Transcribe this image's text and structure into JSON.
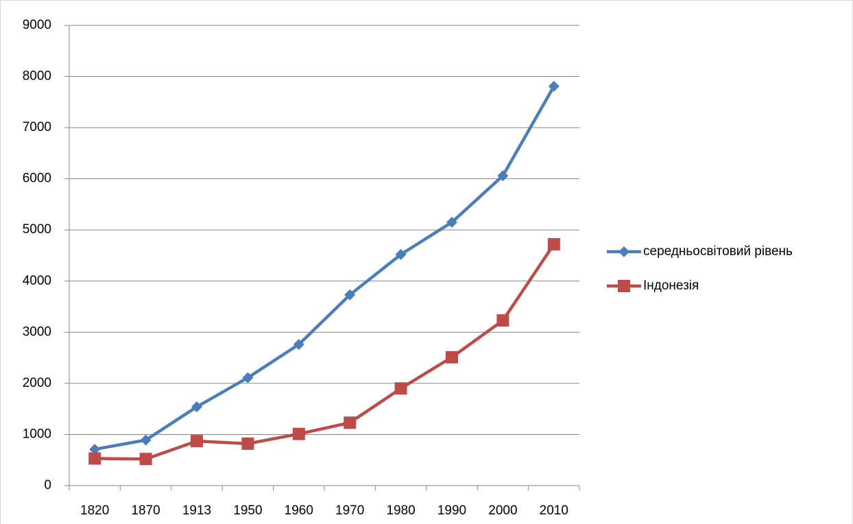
{
  "chart_data": {
    "type": "line",
    "categories": [
      "1820",
      "1870",
      "1913",
      "1950",
      "1960",
      "1970",
      "1980",
      "1990",
      "2000",
      "2010"
    ],
    "series": [
      {
        "name": "середньосвітовий рівень",
        "color": "#4a7ebb",
        "marker": "diamond",
        "values": [
          710,
          890,
          1540,
          2110,
          2760,
          3730,
          4520,
          5150,
          6060,
          7810
        ]
      },
      {
        "name": "Індонезія",
        "color": "#be4b48",
        "marker": "square",
        "values": [
          530,
          520,
          870,
          820,
          1010,
          1230,
          1900,
          2510,
          3230,
          4720
        ]
      }
    ],
    "ylim": [
      0,
      9000
    ],
    "yticks": [
      0,
      1000,
      2000,
      3000,
      4000,
      5000,
      6000,
      7000,
      8000,
      9000
    ],
    "grid": true,
    "legend": "right"
  }
}
